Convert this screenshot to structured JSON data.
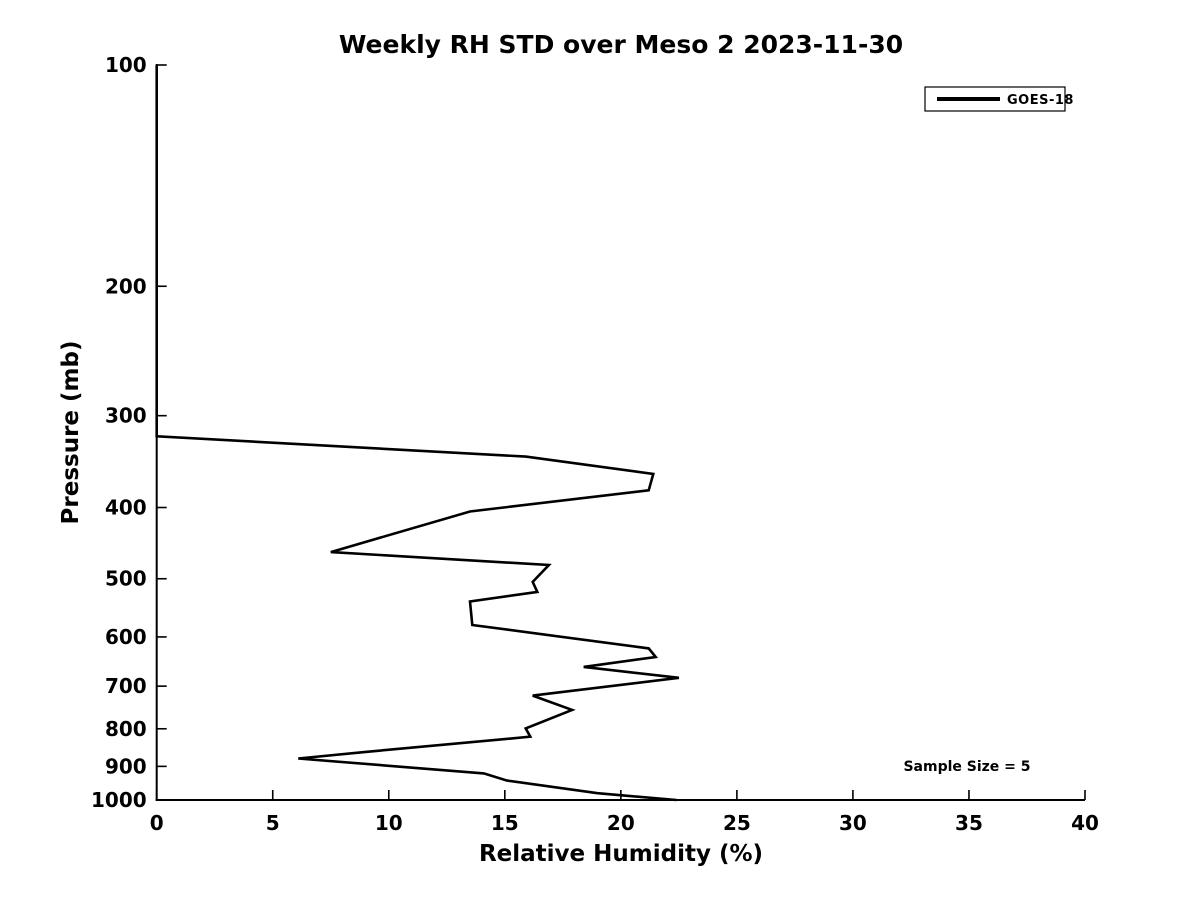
{
  "figure": {
    "background": "#ffffff",
    "foreground": "#000000"
  },
  "chart_data": {
    "type": "line",
    "title": "Weekly RH STD over Meso 2 2023-11-30",
    "xlabel": "Relative Humidity (%)",
    "ylabel": "Pressure (mb)",
    "xlim": [
      0,
      40
    ],
    "ylim": [
      100,
      1000
    ],
    "y_scale": "log",
    "y_inverted": true,
    "grid": false,
    "xticks": [
      0,
      5,
      10,
      15,
      20,
      25,
      30,
      35,
      40
    ],
    "yticks": [
      100,
      200,
      300,
      400,
      500,
      600,
      700,
      800,
      900,
      1000
    ],
    "legend": {
      "position": "top-right",
      "entries": [
        {
          "label": "GOES-18",
          "color": "#000000"
        }
      ]
    },
    "annotation": {
      "text": "Sample Size = 5"
    },
    "series": [
      {
        "name": "GOES-18",
        "color": "#000000",
        "line_width": 2.6,
        "x_key": "relative_humidity_pct",
        "y_key": "pressure_mb",
        "points": [
          [
            0.0,
            100
          ],
          [
            0.0,
            320
          ],
          [
            15.9,
            341
          ],
          [
            21.4,
            360
          ],
          [
            21.2,
            379
          ],
          [
            13.5,
            405
          ],
          [
            7.5,
            460
          ],
          [
            16.9,
            479
          ],
          [
            16.2,
            505
          ],
          [
            16.4,
            521
          ],
          [
            13.5,
            537
          ],
          [
            13.6,
            578
          ],
          [
            21.2,
            622
          ],
          [
            21.5,
            639
          ],
          [
            18.4,
            659
          ],
          [
            22.5,
            682
          ],
          [
            16.2,
            721
          ],
          [
            17.9,
            754
          ],
          [
            15.9,
            799
          ],
          [
            16.1,
            820
          ],
          [
            9.0,
            860
          ],
          [
            6.1,
            878
          ],
          [
            14.1,
            920
          ],
          [
            15.1,
            941
          ],
          [
            19.0,
            979
          ],
          [
            22.4,
            1000
          ]
        ]
      }
    ]
  }
}
